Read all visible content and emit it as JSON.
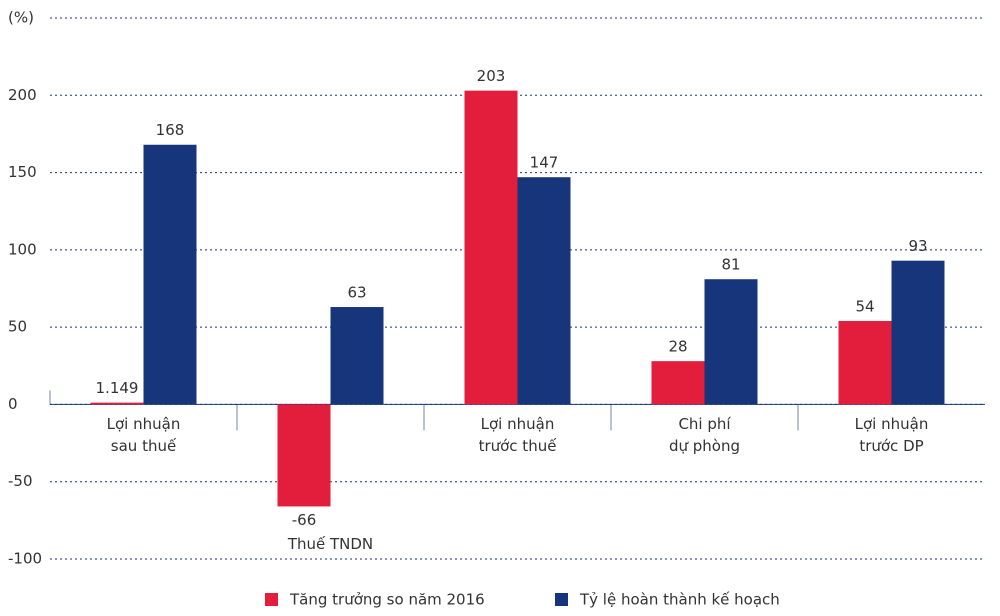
{
  "chart_data": {
    "type": "bar",
    "y_label": "(%)",
    "categories": [
      [
        "Lợi nhuận",
        "sau thuế"
      ],
      [
        "Thuế TNDN"
      ],
      [
        "Lợi nhuận",
        "trước thuế"
      ],
      [
        "Chi phí",
        "dự phòng"
      ],
      [
        "Lợi nhuận",
        "trước DP"
      ]
    ],
    "series": [
      {
        "name": "Tăng trưởng so năm 2016",
        "color": "#e31e3c",
        "values": [
          1.149,
          -66,
          203,
          28,
          54
        ]
      },
      {
        "name": "Tỷ lệ hoàn thành kế hoạch",
        "color": "#17357a",
        "values": [
          168,
          63,
          147,
          81,
          93
        ]
      }
    ],
    "ylim": [
      -100,
      250
    ],
    "yticks": [
      -100,
      -50,
      0,
      50,
      100,
      150,
      200
    ],
    "grid": true,
    "legend": "bottom"
  }
}
